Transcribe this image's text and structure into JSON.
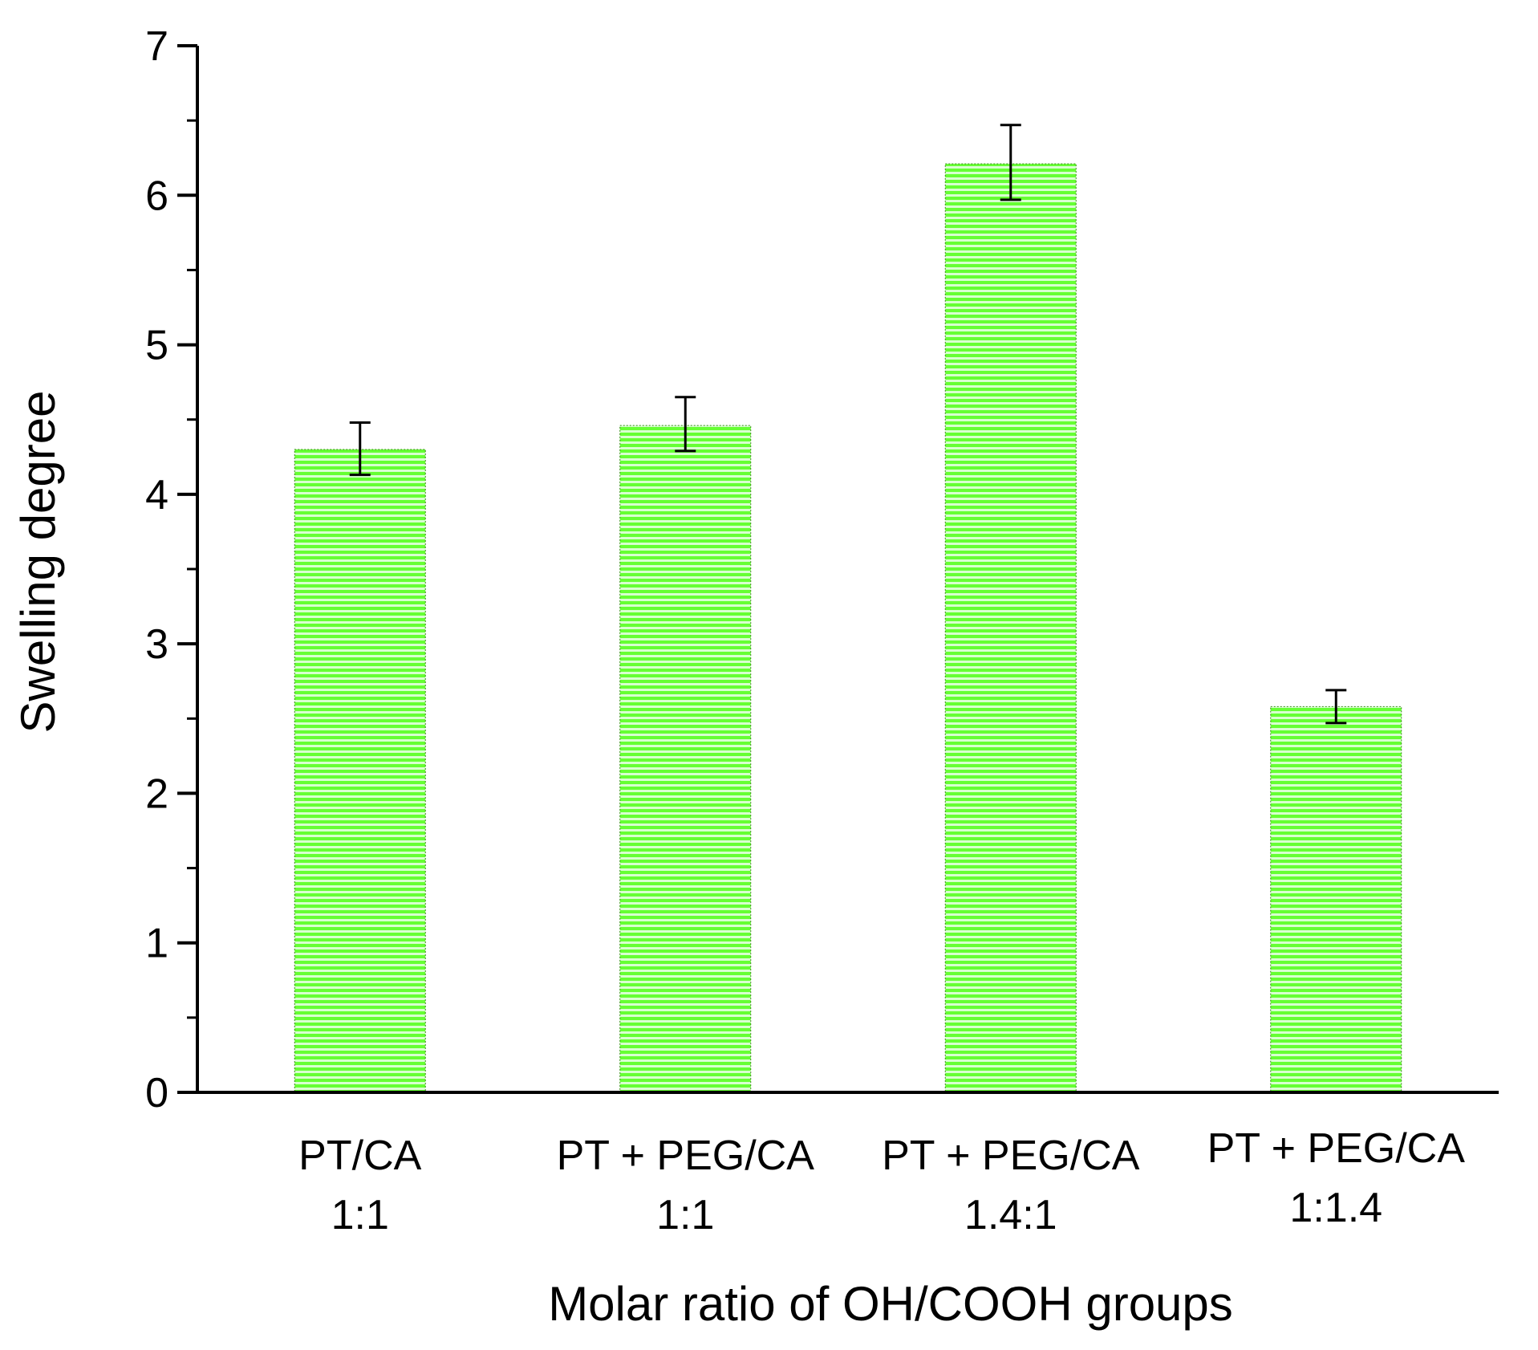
{
  "chart_data": {
    "type": "bar",
    "title": "",
    "xlabel": "Molar ratio of OH/COOH groups",
    "ylabel": "Swelling degree",
    "ylim": [
      0,
      7
    ],
    "yticks": [
      0,
      1,
      2,
      3,
      4,
      5,
      6,
      7
    ],
    "ytick_labels": [
      "0",
      "1",
      "2",
      "3",
      "4",
      "5",
      "6",
      "7"
    ],
    "y_minor_step": 0.5,
    "grid": false,
    "legend": "none",
    "categories": [
      {
        "line1": "PT/CA",
        "line2": "1:1"
      },
      {
        "line1": "PT + PEG/CA",
        "line2": "1:1"
      },
      {
        "line1": "PT + PEG/CA",
        "line2": "1.4:1"
      },
      {
        "line1": "PT + PEG/CA",
        "line2": "1:1.4"
      }
    ],
    "series": [
      {
        "name": "Swelling degree",
        "values": [
          4.3,
          4.46,
          6.21,
          2.58
        ],
        "error_low": [
          4.13,
          4.29,
          5.97,
          2.47
        ],
        "error_high": [
          4.48,
          4.65,
          6.47,
          2.69
        ]
      }
    ],
    "colors": {
      "bar_fill": "#66ff33",
      "bar_stripe": "#d8ffd0",
      "axis": "#000000"
    }
  }
}
